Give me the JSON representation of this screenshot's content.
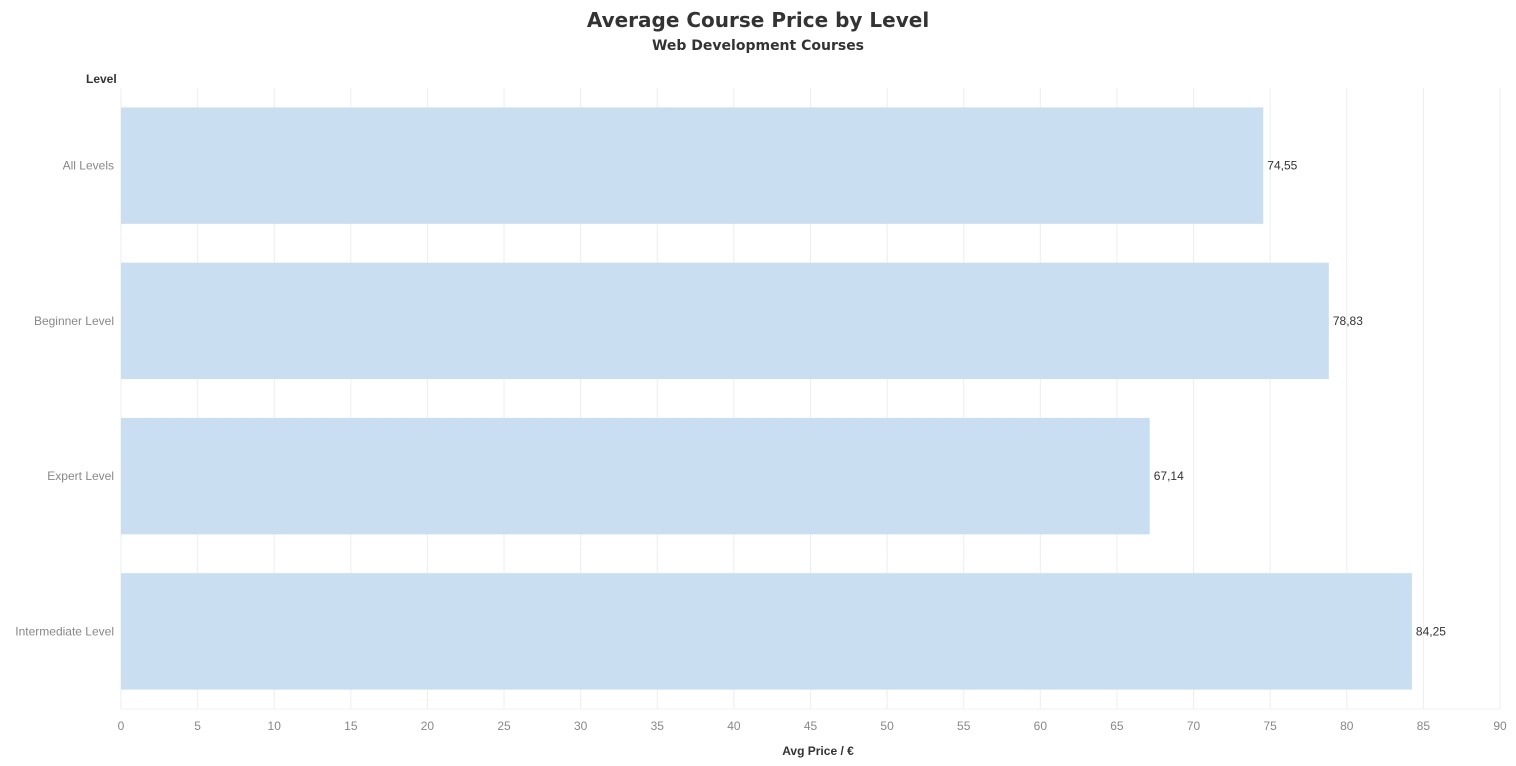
{
  "chart_data": {
    "type": "bar",
    "orientation": "horizontal",
    "title": "Average Course Price by Level",
    "subtitle": "Web Development Courses",
    "y_header": "Level",
    "xlabel": "Avg Price / €",
    "categories": [
      "All Levels",
      "Beginner Level",
      "Expert Level",
      "Intermediate Level"
    ],
    "values": [
      74.55,
      78.83,
      67.14,
      84.25
    ],
    "value_labels": [
      "74,55",
      "78,83",
      "67,14",
      "84,25"
    ],
    "xlim": [
      0,
      90
    ],
    "x_ticks": [
      "0",
      "5",
      "10",
      "15",
      "20",
      "25",
      "30",
      "35",
      "40",
      "45",
      "50",
      "55",
      "60",
      "65",
      "70",
      "75",
      "80",
      "85",
      "90"
    ],
    "grid": true,
    "legend": "none",
    "colors": {
      "bar": "#c9dff1",
      "grid": "#eeeeee",
      "axis_text": "#888888",
      "label_text": "#333333"
    }
  }
}
